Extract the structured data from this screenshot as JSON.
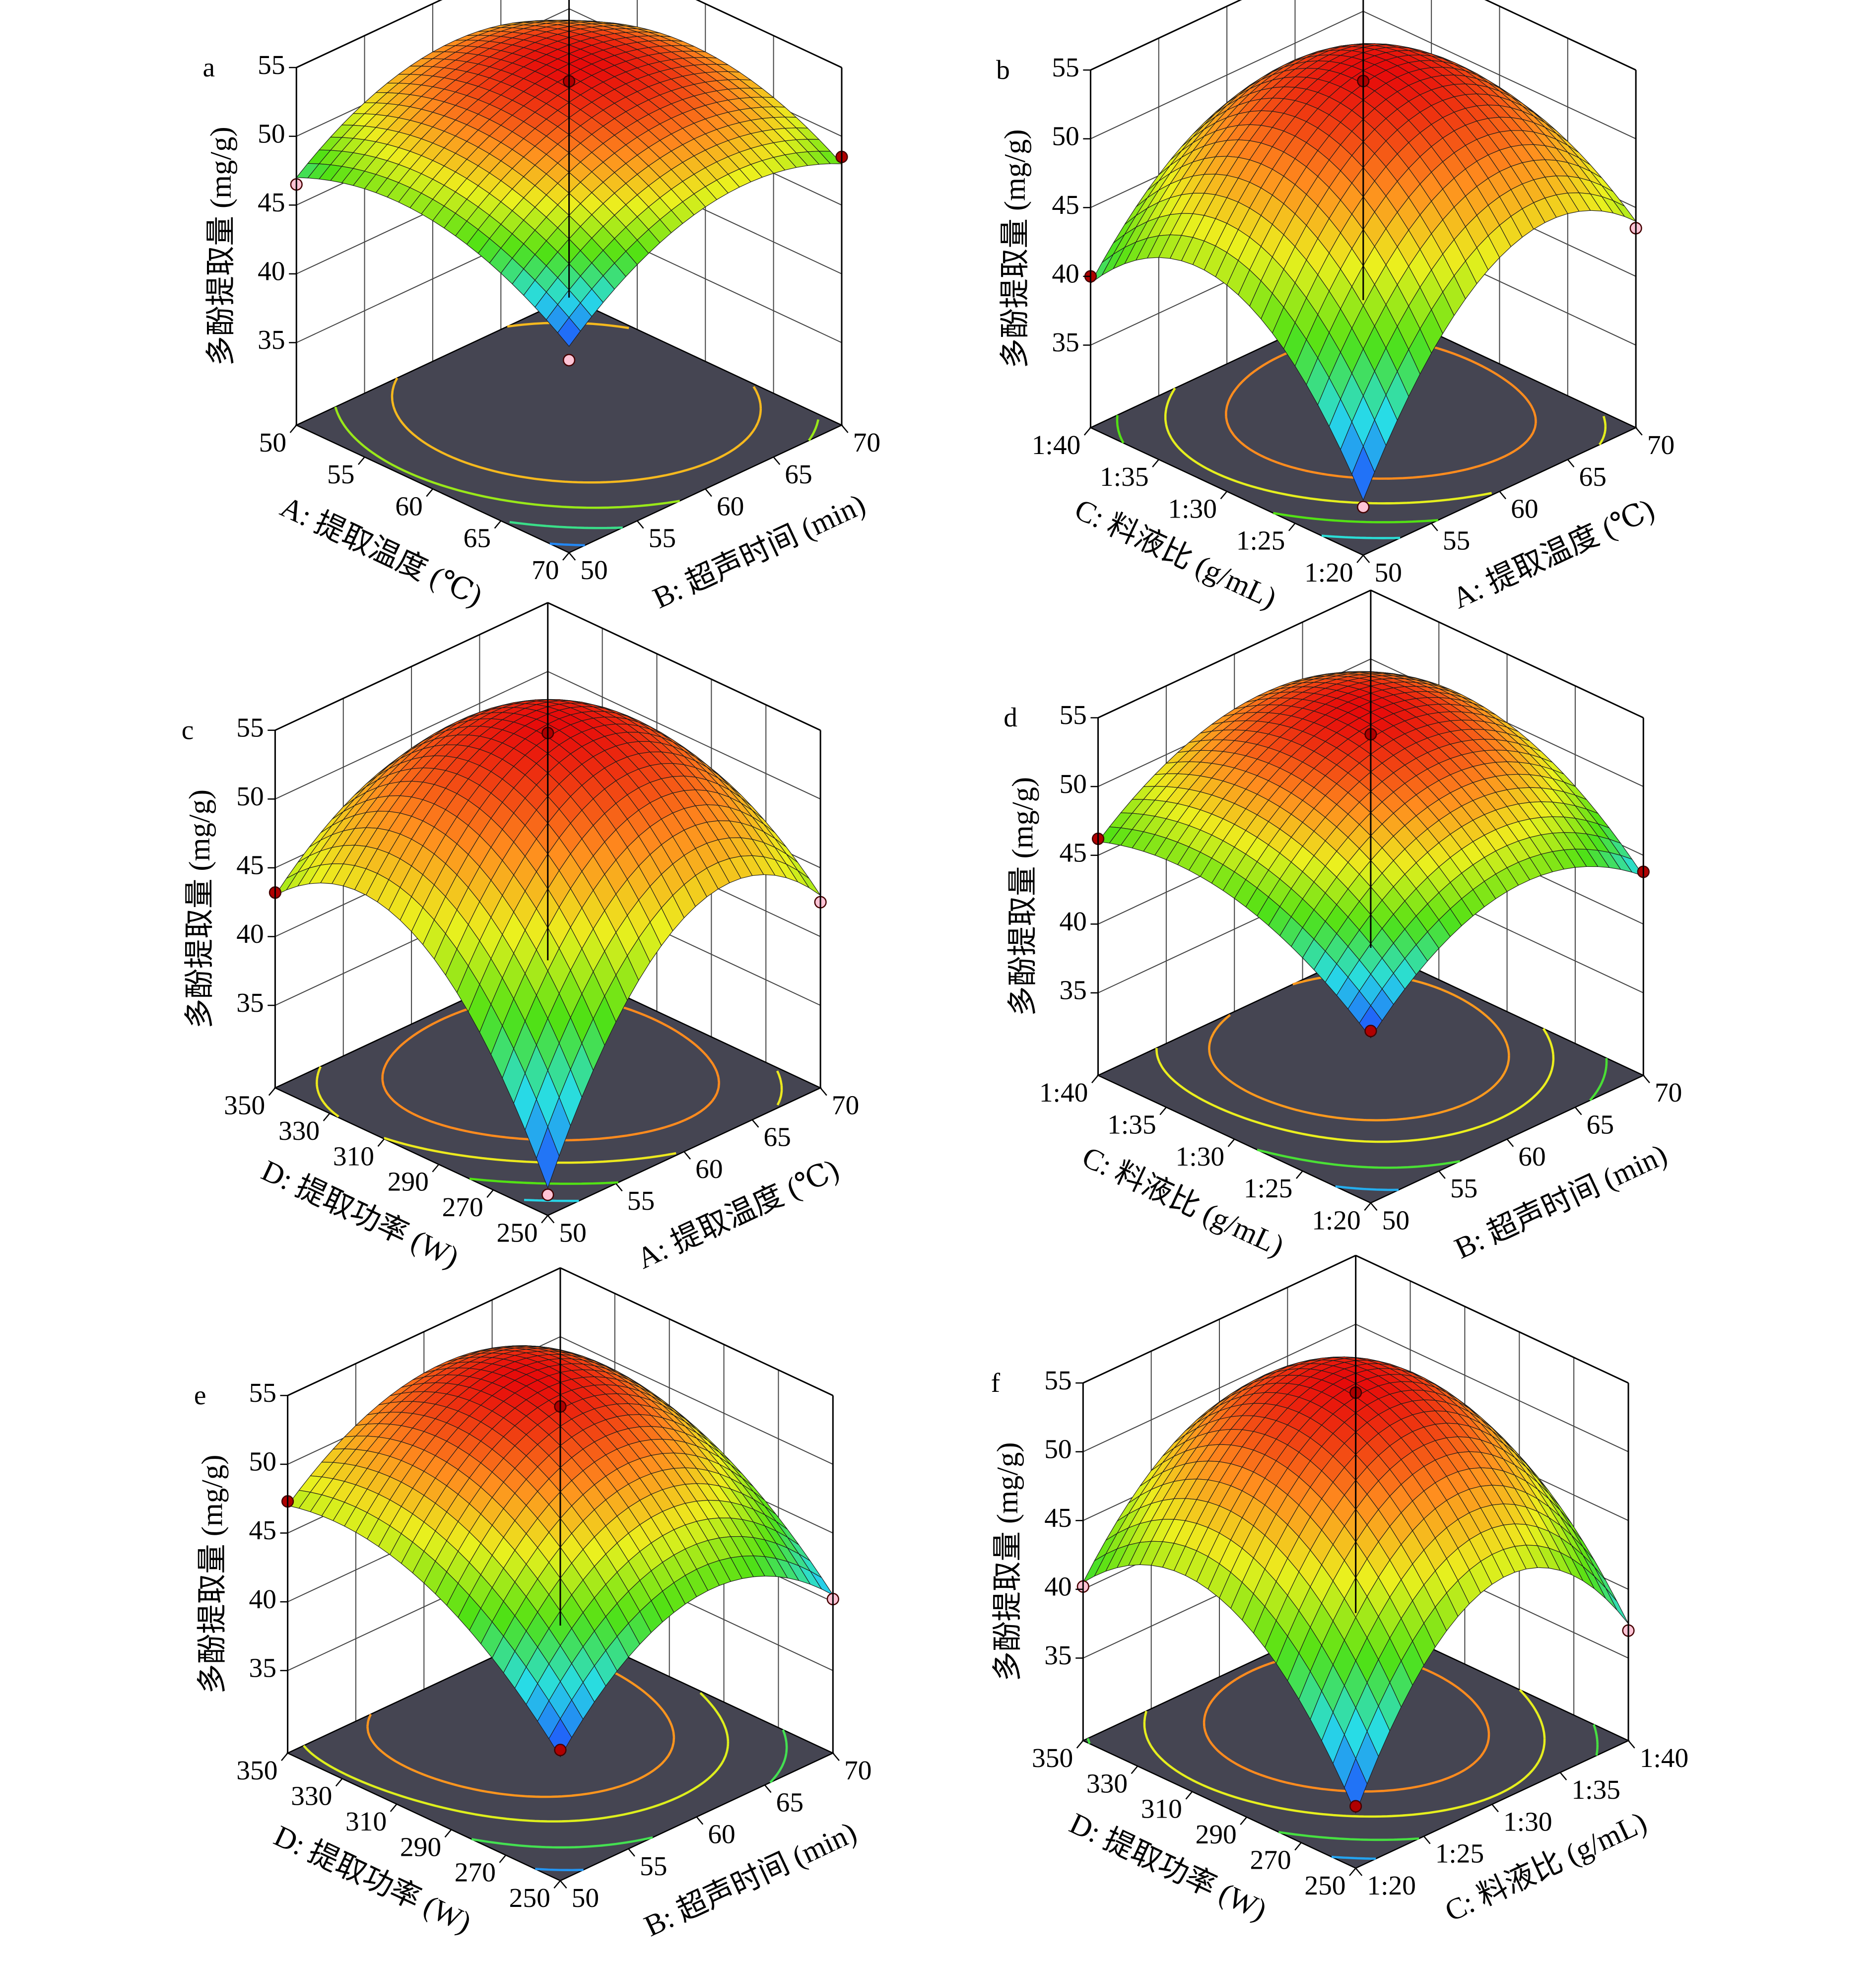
{
  "chart_data": [
    {
      "type": "surface",
      "letter": "a",
      "xlabel": "A: 提取温度 (℃)",
      "ylabel": "B: 超声时间 (min)",
      "zlabel": "多酚提取量 (mg/g)",
      "xlim": [
        50,
        70
      ],
      "xticks": [
        50,
        55,
        60,
        65,
        70
      ],
      "ylim": [
        50,
        70
      ],
      "yticks": [
        50,
        55,
        60,
        65,
        70
      ],
      "zlim": [
        29,
        55
      ],
      "zticks": [
        35,
        40,
        45,
        50,
        55
      ],
      "surface": [
        [
          47,
          51.5,
          49
        ],
        [
          48.5,
          53.5,
          51.5
        ],
        [
          44,
          49.5,
          48
        ]
      ],
      "points": {
        "x": [
          50,
          60,
          70,
          70
        ],
        "y": [
          50,
          60,
          50,
          70
        ],
        "z": [
          46.5,
          54,
          43,
          48.5
        ]
      },
      "contour_levels": [
        45,
        47,
        49,
        51
      ]
    },
    {
      "type": "surface",
      "letter": "b",
      "xlabel": "C: 料液比 (g/mL)",
      "ylabel": "A: 提取温度 (℃)",
      "zlabel": "多酚提取量 (mg/g)",
      "xlim": [
        40,
        20
      ],
      "xticks": [
        {
          "value": 40,
          "label": "1:40"
        },
        {
          "value": 35,
          "label": "1:35"
        },
        {
          "value": 30,
          "label": "1:30"
        },
        {
          "value": 25,
          "label": "1:25"
        },
        {
          "value": 20,
          "label": "1:20"
        }
      ],
      "ylim": [
        50,
        70
      ],
      "yticks": [
        50,
        55,
        60,
        65,
        70
      ],
      "zlim": [
        29,
        55
      ],
      "zticks": [
        35,
        40,
        45,
        50,
        55
      ],
      "surface": [
        [
          39.5,
          48,
          46
        ],
        [
          44,
          54,
          49
        ],
        [
          33,
          46,
          44
        ]
      ],
      "points": {
        "x": [
          40,
          30,
          20,
          20
        ],
        "y": [
          50,
          60,
          50,
          70
        ],
        "z": [
          40,
          54.2,
          32.5,
          43.5
        ]
      },
      "contour_levels": [
        38,
        42,
        46,
        50
      ]
    },
    {
      "type": "surface",
      "letter": "c",
      "xlabel": "D: 提取功率 (W)",
      "ylabel": "A: 提取温度 (℃)",
      "zlabel": "多酚提取量 (mg/g)",
      "xlim": [
        350,
        250
      ],
      "xticks": [
        350,
        330,
        310,
        290,
        270,
        250
      ],
      "ylim": [
        50,
        70
      ],
      "yticks": [
        50,
        55,
        60,
        65,
        70
      ],
      "zlim": [
        29,
        55
      ],
      "zticks": [
        35,
        40,
        45,
        50,
        55
      ],
      "surface": [
        [
          43,
          49,
          46
        ],
        [
          45,
          54.5,
          49
        ],
        [
          31,
          46,
          43
        ]
      ],
      "points": {
        "x": [
          350,
          300,
          250,
          250
        ],
        "y": [
          50,
          60,
          50,
          70
        ],
        "z": [
          43.2,
          54.8,
          30.5,
          42.5
        ]
      },
      "contour_levels": [
        36,
        41,
        46,
        50
      ]
    },
    {
      "type": "surface",
      "letter": "d",
      "xlabel": "C: 料液比 (g/mL)",
      "ylabel": "B: 超声时间 (min)",
      "zlabel": "多酚提取量 (mg/g)",
      "xlim": [
        40,
        20
      ],
      "xticks": [
        {
          "value": 40,
          "label": "1:40"
        },
        {
          "value": 35,
          "label": "1:35"
        },
        {
          "value": 30,
          "label": "1:30"
        },
        {
          "value": 25,
          "label": "1:25"
        },
        {
          "value": 20,
          "label": "1:20"
        }
      ],
      "ylim": [
        50,
        70
      ],
      "yticks": [
        50,
        55,
        60,
        65,
        70
      ],
      "zlim": [
        29,
        55
      ],
      "zticks": [
        35,
        40,
        45,
        50,
        55
      ],
      "surface": [
        [
          46,
          51,
          49
        ],
        [
          46.5,
          53.5,
          50
        ],
        [
          41,
          47,
          43.5
        ]
      ],
      "points": {
        "x": [
          40,
          30,
          20,
          20
        ],
        "y": [
          50,
          60,
          50,
          70
        ],
        "z": [
          46.2,
          53.8,
          41.5,
          43.8
        ]
      },
      "contour_levels": [
        43,
        46,
        49,
        51
      ]
    },
    {
      "type": "surface",
      "letter": "e",
      "xlabel": "D: 提取功率 (W)",
      "ylabel": "B: 超声时间 (min)",
      "zlabel": "多酚提取量 (mg/g)",
      "xlim": [
        350,
        250
      ],
      "xticks": [
        350,
        330,
        310,
        290,
        270,
        250
      ],
      "ylim": [
        50,
        70
      ],
      "yticks": [
        50,
        55,
        60,
        65,
        70
      ],
      "zlim": [
        29,
        55
      ],
      "zticks": [
        35,
        40,
        45,
        50,
        55
      ],
      "surface": [
        [
          47,
          52,
          49
        ],
        [
          46,
          54,
          48
        ],
        [
          38,
          45,
          40.5
        ]
      ],
      "points": {
        "x": [
          350,
          300,
          250,
          250
        ],
        "y": [
          50,
          60,
          50,
          70
        ],
        "z": [
          47.3,
          54.2,
          38.5,
          40.2
        ]
      },
      "contour_levels": [
        40,
        44,
        48,
        51
      ]
    },
    {
      "type": "surface",
      "letter": "f",
      "xlabel": "D: 提取功率 (W)",
      "ylabel": "C: 料液比 (g/mL)",
      "zlabel": "多酚提取量 (mg/g)",
      "xlim": [
        350,
        250
      ],
      "xticks": [
        350,
        330,
        310,
        290,
        270,
        250
      ],
      "ylim": [
        20,
        40
      ],
      "yticks": [
        {
          "value": 20,
          "label": "1:20"
        },
        {
          "value": 25,
          "label": "1:25"
        },
        {
          "value": 30,
          "label": "1:30"
        },
        {
          "value": 35,
          "label": "1:35"
        },
        {
          "value": 40,
          "label": "1:40"
        }
      ],
      "zlim": [
        29,
        55
      ],
      "zticks": [
        35,
        40,
        45,
        50,
        55
      ],
      "surface": [
        [
          40.5,
          49,
          45
        ],
        [
          44,
          54,
          47
        ],
        [
          33,
          45,
          37.5
        ]
      ],
      "points": {
        "x": [
          350,
          300,
          250,
          250
        ],
        "y": [
          20,
          30,
          20,
          40
        ],
        "z": [
          40.2,
          54.3,
          33.5,
          37
        ]
      },
      "contour_levels": [
        36,
        41,
        46,
        50
      ]
    }
  ]
}
